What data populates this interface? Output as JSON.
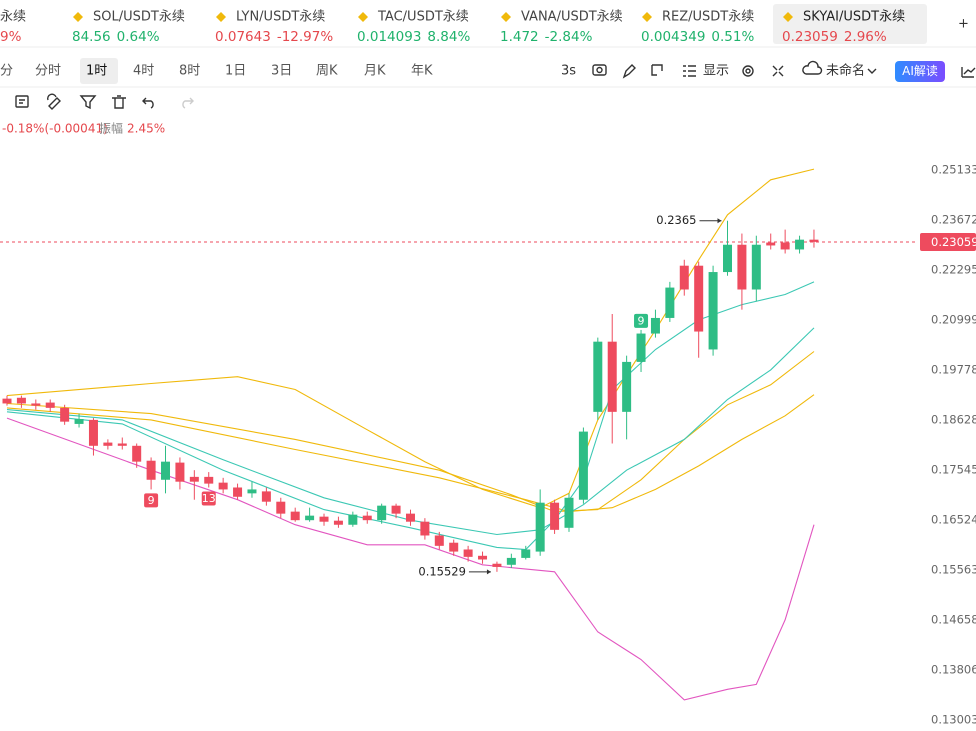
{
  "tickers": [
    {
      "name": "永续",
      "change": "9%",
      "color": "#e5484d"
    },
    {
      "name": "SOL/USDT永续",
      "price": "84.56",
      "change": "0.64%",
      "color": "#20b26c"
    },
    {
      "name": "LYN/USDT永续",
      "price": "0.07643",
      "change": "-12.97%",
      "color": "#e5484d"
    },
    {
      "name": "TAC/USDT永续",
      "price": "0.014093",
      "change": "8.84%",
      "color": "#20b26c"
    },
    {
      "name": "VANA/USDT永续",
      "price": "1.472",
      "change": "-2.84%",
      "color": "#20b26c"
    },
    {
      "name": "REZ/USDT永续",
      "price": "0.004349",
      "change": "0.51%",
      "color": "#20b26c"
    },
    {
      "name": "SKYAI/USDT永续",
      "price": "0.23059",
      "change": "2.96%",
      "color": "#e5484d",
      "selected": true
    }
  ],
  "timeframes": [
    "分",
    "分时",
    "1时",
    "4时",
    "8时",
    "1日",
    "3日",
    "周K",
    "月K",
    "年K"
  ],
  "selected_timeframe": 2,
  "toolbar": {
    "refresh": "3s",
    "display": "显示",
    "layout": "未命名",
    "ai": "AI解读"
  },
  "stats": {
    "change": "-0.18%(-0.00041)",
    "amplitude_label": "振幅",
    "amplitude": "2.45%"
  },
  "chart_data": {
    "type": "candlestick",
    "log_scale": true,
    "grid": false,
    "up_color": "#2ebd85",
    "down_color": "#ee4b5e",
    "ylim": [
      0.12894,
      0.25897
    ],
    "yticks": [
      0.25133,
      0.23672,
      0.22295,
      0.20999,
      0.19778,
      0.18628,
      0.17545,
      0.16524,
      0.15563,
      0.14658,
      0.13806,
      0.13003
    ],
    "open": [
      0.1911,
      0.1913,
      0.19,
      0.1902,
      0.189,
      0.1854,
      0.1863,
      0.1813,
      0.1811,
      0.1806,
      0.1774,
      0.1734,
      0.177,
      0.174,
      0.174,
      0.1728,
      0.1718,
      0.1706,
      0.171,
      0.1689,
      0.1669,
      0.1652,
      0.1659,
      0.1651,
      0.1643,
      0.1661,
      0.1652,
      0.1681,
      0.1665,
      0.1649,
      0.1622,
      0.1608,
      0.1595,
      0.1583,
      0.1568,
      0.1566,
      0.1579,
      0.1591,
      0.1687,
      0.1637,
      0.1693,
      0.1881,
      0.2046,
      0.1881,
      0.1997,
      0.2066,
      0.2105,
      0.2241,
      0.2241,
      0.2027,
      0.2224,
      0.2298,
      0.2178,
      0.2304,
      0.2304,
      0.2285,
      0.2312
    ],
    "high": [
      0.1918,
      0.1918,
      0.1909,
      0.1909,
      0.1897,
      0.1877,
      0.1867,
      0.182,
      0.1824,
      0.1811,
      0.1781,
      0.1806,
      0.1781,
      0.1754,
      0.175,
      0.1738,
      0.1726,
      0.173,
      0.1718,
      0.1697,
      0.1677,
      0.1677,
      0.1665,
      0.1659,
      0.1669,
      0.1669,
      0.1685,
      0.1685,
      0.1673,
      0.1656,
      0.1629,
      0.1614,
      0.1602,
      0.1591,
      0.1572,
      0.1587,
      0.1602,
      0.1714,
      0.1693,
      0.1706,
      0.1846,
      0.2056,
      0.2115,
      0.2012,
      0.2075,
      0.2126,
      0.2198,
      0.2257,
      0.2252,
      0.2241,
      0.2365,
      0.2329,
      0.2323,
      0.2329,
      0.234,
      0.2323,
      0.234
    ],
    "low": [
      0.1895,
      0.189,
      0.1886,
      0.1881,
      0.1852,
      0.1846,
      0.1785,
      0.1798,
      0.1798,
      0.1759,
      0.1714,
      0.1706,
      0.1714,
      0.1693,
      0.1718,
      0.1706,
      0.1693,
      0.1697,
      0.1681,
      0.1656,
      0.1649,
      0.1649,
      0.1641,
      0.1637,
      0.1639,
      0.1645,
      0.1645,
      0.1656,
      0.1641,
      0.1614,
      0.1595,
      0.1583,
      0.1572,
      0.1568,
      0.15529,
      0.156,
      0.1576,
      0.1583,
      0.1625,
      0.1629,
      0.1685,
      0.1863,
      0.1811,
      0.182,
      0.1973,
      0.2056,
      0.2095,
      0.2162,
      0.2007,
      0.2012,
      0.2214,
      0.2126,
      0.2147,
      0.2285,
      0.2274,
      0.2274,
      0.229
    ],
    "close": [
      0.19,
      0.19,
      0.1895,
      0.189,
      0.1859,
      0.1865,
      0.1806,
      0.1806,
      0.1806,
      0.1772,
      0.1734,
      0.1772,
      0.173,
      0.173,
      0.1726,
      0.1714,
      0.1699,
      0.1714,
      0.1689,
      0.1665,
      0.1652,
      0.1661,
      0.1649,
      0.1643,
      0.1663,
      0.1652,
      0.1681,
      0.1665,
      0.1649,
      0.1622,
      0.1602,
      0.1591,
      0.1581,
      0.1576,
      0.1562,
      0.1579,
      0.1595,
      0.1687,
      0.1633,
      0.1697,
      0.1837,
      0.2046,
      0.1881,
      0.1997,
      0.2066,
      0.2105,
      0.2183,
      0.2178,
      0.2071,
      0.2224,
      0.2298,
      0.2178,
      0.2298,
      0.2296,
      0.2285,
      0.2312,
      0.23059
    ],
    "markers": [
      {
        "index": 10,
        "label": "9",
        "position": "below",
        "color": "#ee4b5e"
      },
      {
        "index": 14,
        "label": "13",
        "position": "below",
        "color": "#ee4b5e"
      },
      {
        "index": 44,
        "label": "9",
        "position": "above",
        "color": "#2ebd85"
      }
    ],
    "lines": [
      {
        "color": "#f0b90b",
        "x": [
          0,
          10,
          16,
          20,
          25,
          29,
          33,
          37,
          39,
          41,
          45,
          48,
          50,
          53,
          56
        ],
        "values": [
          0.1918,
          0.1946,
          0.1962,
          0.1932,
          0.1841,
          0.1772,
          0.1714,
          0.1677,
          0.1706,
          0.1863,
          0.2075,
          0.2257,
          0.2382,
          0.2484,
          0.2516
        ]
      },
      {
        "color": "#f0b90b",
        "x": [
          0,
          10,
          20,
          30,
          35,
          38,
          41,
          44,
          47,
          50,
          53,
          56
        ],
        "values": [
          0.19,
          0.1877,
          0.182,
          0.1754,
          0.1703,
          0.1669,
          0.1673,
          0.1734,
          0.182,
          0.1897,
          0.1943,
          0.2022
        ]
      },
      {
        "color": "#f0b90b",
        "x": [
          0,
          10,
          20,
          30,
          36,
          39,
          42,
          45,
          48,
          51,
          54,
          56
        ],
        "values": [
          0.189,
          0.1863,
          0.1798,
          0.1738,
          0.1693,
          0.1669,
          0.1677,
          0.1714,
          0.1763,
          0.182,
          0.1872,
          0.192
        ]
      },
      {
        "color": "#3cc8b4",
        "x": [
          0,
          8,
          15,
          22,
          28,
          34,
          37,
          40,
          43,
          47,
          50,
          53,
          56
        ],
        "values": [
          0.1886,
          0.1863,
          0.1776,
          0.1697,
          0.1652,
          0.1624,
          0.1633,
          0.1683,
          0.1754,
          0.182,
          0.1909,
          0.1978,
          0.208
        ]
      },
      {
        "color": "#3cc8b4",
        "x": [
          0,
          8,
          15,
          22,
          28,
          34,
          36,
          38,
          40,
          42,
          45,
          48,
          51,
          54,
          56
        ],
        "values": [
          0.1881,
          0.1854,
          0.1754,
          0.1673,
          0.1637,
          0.1599,
          0.1595,
          0.1652,
          0.1734,
          0.1932,
          0.2027,
          0.21,
          0.2139,
          0.2165,
          0.2198
        ]
      },
      {
        "color": "#e256c0",
        "x": [
          0,
          10,
          16,
          20,
          25,
          29,
          33,
          38,
          41,
          44,
          47,
          50,
          52,
          54,
          56
        ],
        "values": [
          0.1867,
          0.1754,
          0.1693,
          0.1643,
          0.1604,
          0.1604,
          0.1566,
          0.1553,
          0.1445,
          0.1398,
          0.1332,
          0.1349,
          0.1357,
          0.1466,
          0.1643
        ]
      }
    ]
  }
}
